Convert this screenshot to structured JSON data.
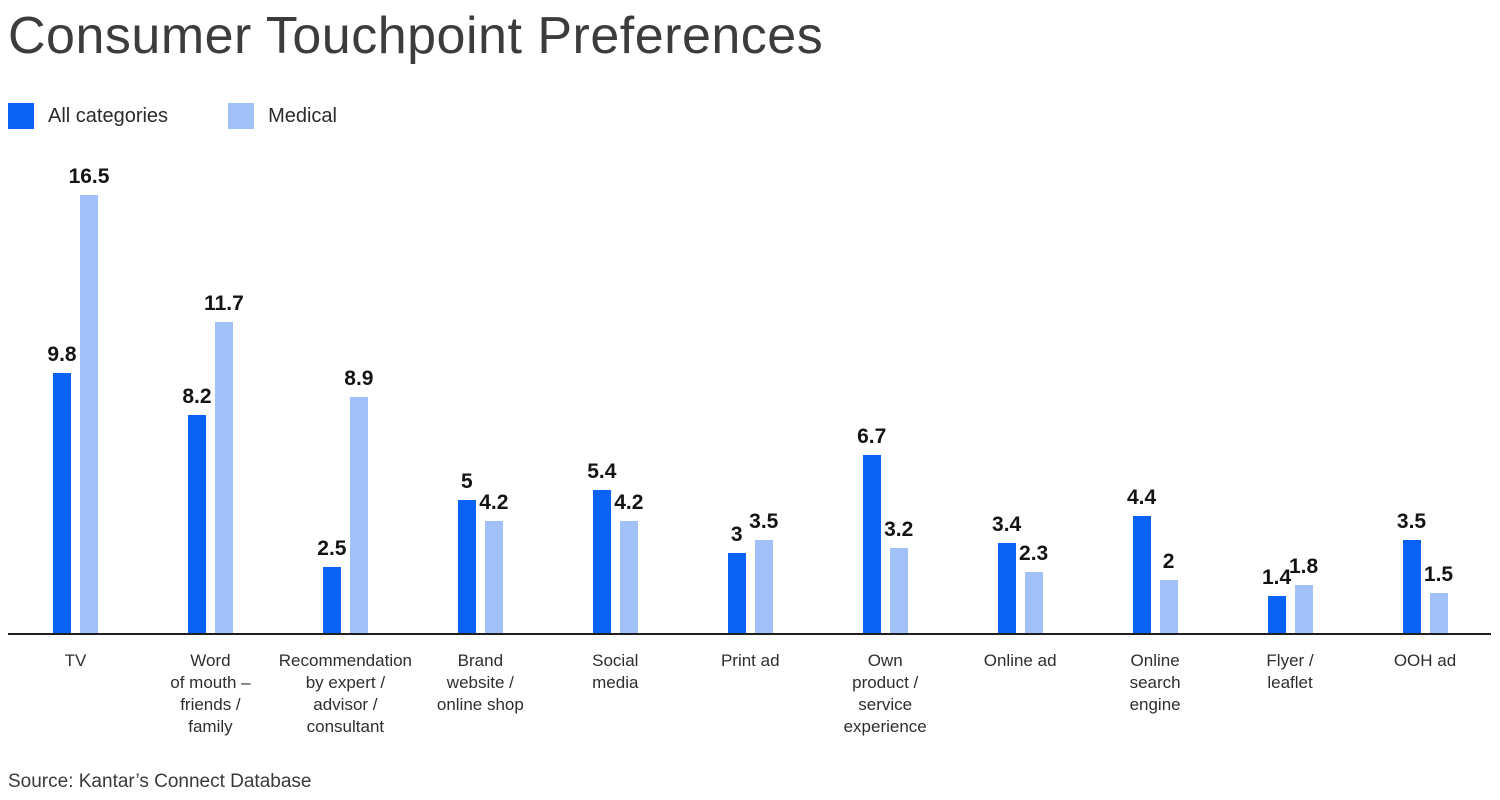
{
  "title": "Consumer Touchpoint Preferences",
  "source_note": "Source: Kantar’s Connect Database",
  "legend": {
    "items": [
      {
        "label": "All categories",
        "color": "#0b63f5"
      },
      {
        "label": "Medical",
        "color": "#a2c1f8"
      }
    ]
  },
  "chart_data": {
    "type": "bar",
    "title": "Consumer Touchpoint Preferences",
    "categories": [
      "TV",
      "Word of mouth – friends / family",
      "Recommendation by expert / advisor / consultant",
      "Brand website / online shop",
      "Social media",
      "Print ad",
      "Own product / service experience",
      "Online ad",
      "Online search engine",
      "Flyer / leaflet",
      "OOH ad"
    ],
    "category_label_lines": [
      [
        "TV"
      ],
      [
        "Word",
        "of mouth –",
        "friends /",
        "family"
      ],
      [
        "Recommendation",
        "by expert /",
        "advisor /",
        "consultant"
      ],
      [
        "Brand",
        "website /",
        "online shop"
      ],
      [
        "Social",
        "media"
      ],
      [
        "Print ad"
      ],
      [
        "Own",
        "product /",
        "service",
        "experience"
      ],
      [
        "Online ad"
      ],
      [
        "Online",
        "search",
        "engine"
      ],
      [
        "Flyer /",
        "leaflet"
      ],
      [
        "OOH ad"
      ]
    ],
    "series": [
      {
        "name": "All categories",
        "color": "#0b63f5",
        "values": [
          9.8,
          8.2,
          2.5,
          5,
          5.4,
          3,
          6.7,
          3.4,
          4.4,
          1.4,
          3.5
        ]
      },
      {
        "name": "Medical",
        "color": "#a2c1f8",
        "values": [
          16.5,
          11.7,
          8.9,
          4.2,
          4.2,
          3.5,
          3.2,
          2.3,
          2,
          1.8,
          1.5
        ]
      }
    ],
    "xlabel": "",
    "ylabel": "",
    "ylim": [
      0,
      17
    ],
    "grid": false,
    "value_labels_shown": true,
    "legend_position": "top-left",
    "axis_ticks_shown": false
  }
}
